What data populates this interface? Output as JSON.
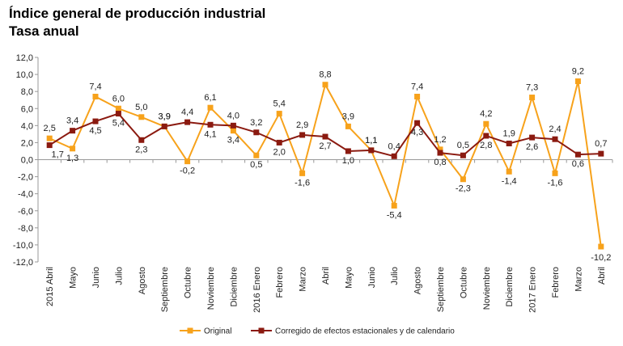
{
  "title": "Índice general de producción industrial",
  "subtitle": "Tasa anual",
  "colors": {
    "original": "#f7a21b",
    "corrected": "#8b1a10",
    "axis": "#999999",
    "grid": "#dddddd"
  },
  "chart_data": {
    "type": "line",
    "title": "Índice general de producción industrial",
    "subtitle": "Tasa anual",
    "categories": [
      "2015 Abril",
      "Mayo",
      "Junio",
      "Julio",
      "Agosto",
      "Septiembre",
      "Octubre",
      "Noviembre",
      "Diciembre",
      "2016 Enero",
      "Febrero",
      "Marzo",
      "Abril",
      "Mayo",
      "Junio",
      "Julio",
      "Agosto",
      "Septiembre",
      "Octubre",
      "Noviembre",
      "Diciembre",
      "2017 Enero",
      "Febrero",
      "Marzo",
      "Abril"
    ],
    "ylim": [
      -12,
      12
    ],
    "yticks": [
      -12,
      -10,
      -8,
      -6,
      -4,
      -2,
      0,
      2,
      4,
      6,
      8,
      10,
      12
    ],
    "ytick_labels": [
      "-12,0",
      "-10,0",
      "-8,0",
      "-6,0",
      "-4,0",
      "-2,0",
      "0,0",
      "2,0",
      "4,0",
      "6,0",
      "8,0",
      "10,0",
      "12,0"
    ],
    "grid": false,
    "legend_position": "bottom",
    "series": [
      {
        "name": "Original",
        "color": "#f7a21b",
        "marker": "square",
        "values": [
          2.5,
          1.3,
          7.4,
          6.0,
          5.0,
          3.9,
          -0.2,
          6.1,
          3.4,
          0.5,
          5.4,
          -1.6,
          8.8,
          3.9,
          1.1,
          -5.4,
          7.4,
          1.2,
          -2.3,
          4.2,
          -1.4,
          7.3,
          -1.6,
          9.2,
          -10.2
        ],
        "labels": [
          "2,5",
          "1,3",
          "7,4",
          "6,0",
          "5,0",
          "3,9",
          "-0,2",
          "6,1",
          "3,4",
          "0,5",
          "5,4",
          "-1,6",
          "8,8",
          "3,9",
          "1,1",
          "-5,4",
          "7,4",
          "1,2",
          "-2,3",
          "4,2",
          "-1,4",
          "7,3",
          "-1,6",
          "9,2",
          "-10,2"
        ]
      },
      {
        "name": "Corregido de efectos estacionales y de calendario",
        "color": "#8b1a10",
        "marker": "square",
        "values": [
          1.7,
          3.4,
          4.5,
          5.4,
          2.3,
          3.9,
          4.4,
          4.1,
          4.0,
          3.2,
          2.0,
          2.9,
          2.7,
          1.0,
          1.1,
          0.4,
          4.3,
          0.8,
          0.5,
          2.8,
          1.9,
          2.6,
          2.4,
          0.6,
          0.7
        ],
        "labels": [
          "1,7",
          "3,4",
          "4,5",
          "5,4",
          "2,3",
          "3,9",
          "4,4",
          "4,1",
          "4,0",
          "3,2",
          "2,0",
          "2,9",
          "2,7",
          "1,0",
          "1,1",
          "0,4",
          "4,3",
          "0,8",
          "0,5",
          "2,8",
          "1,9",
          "2,6",
          "2,4",
          "0,6",
          "0,7"
        ]
      }
    ]
  }
}
